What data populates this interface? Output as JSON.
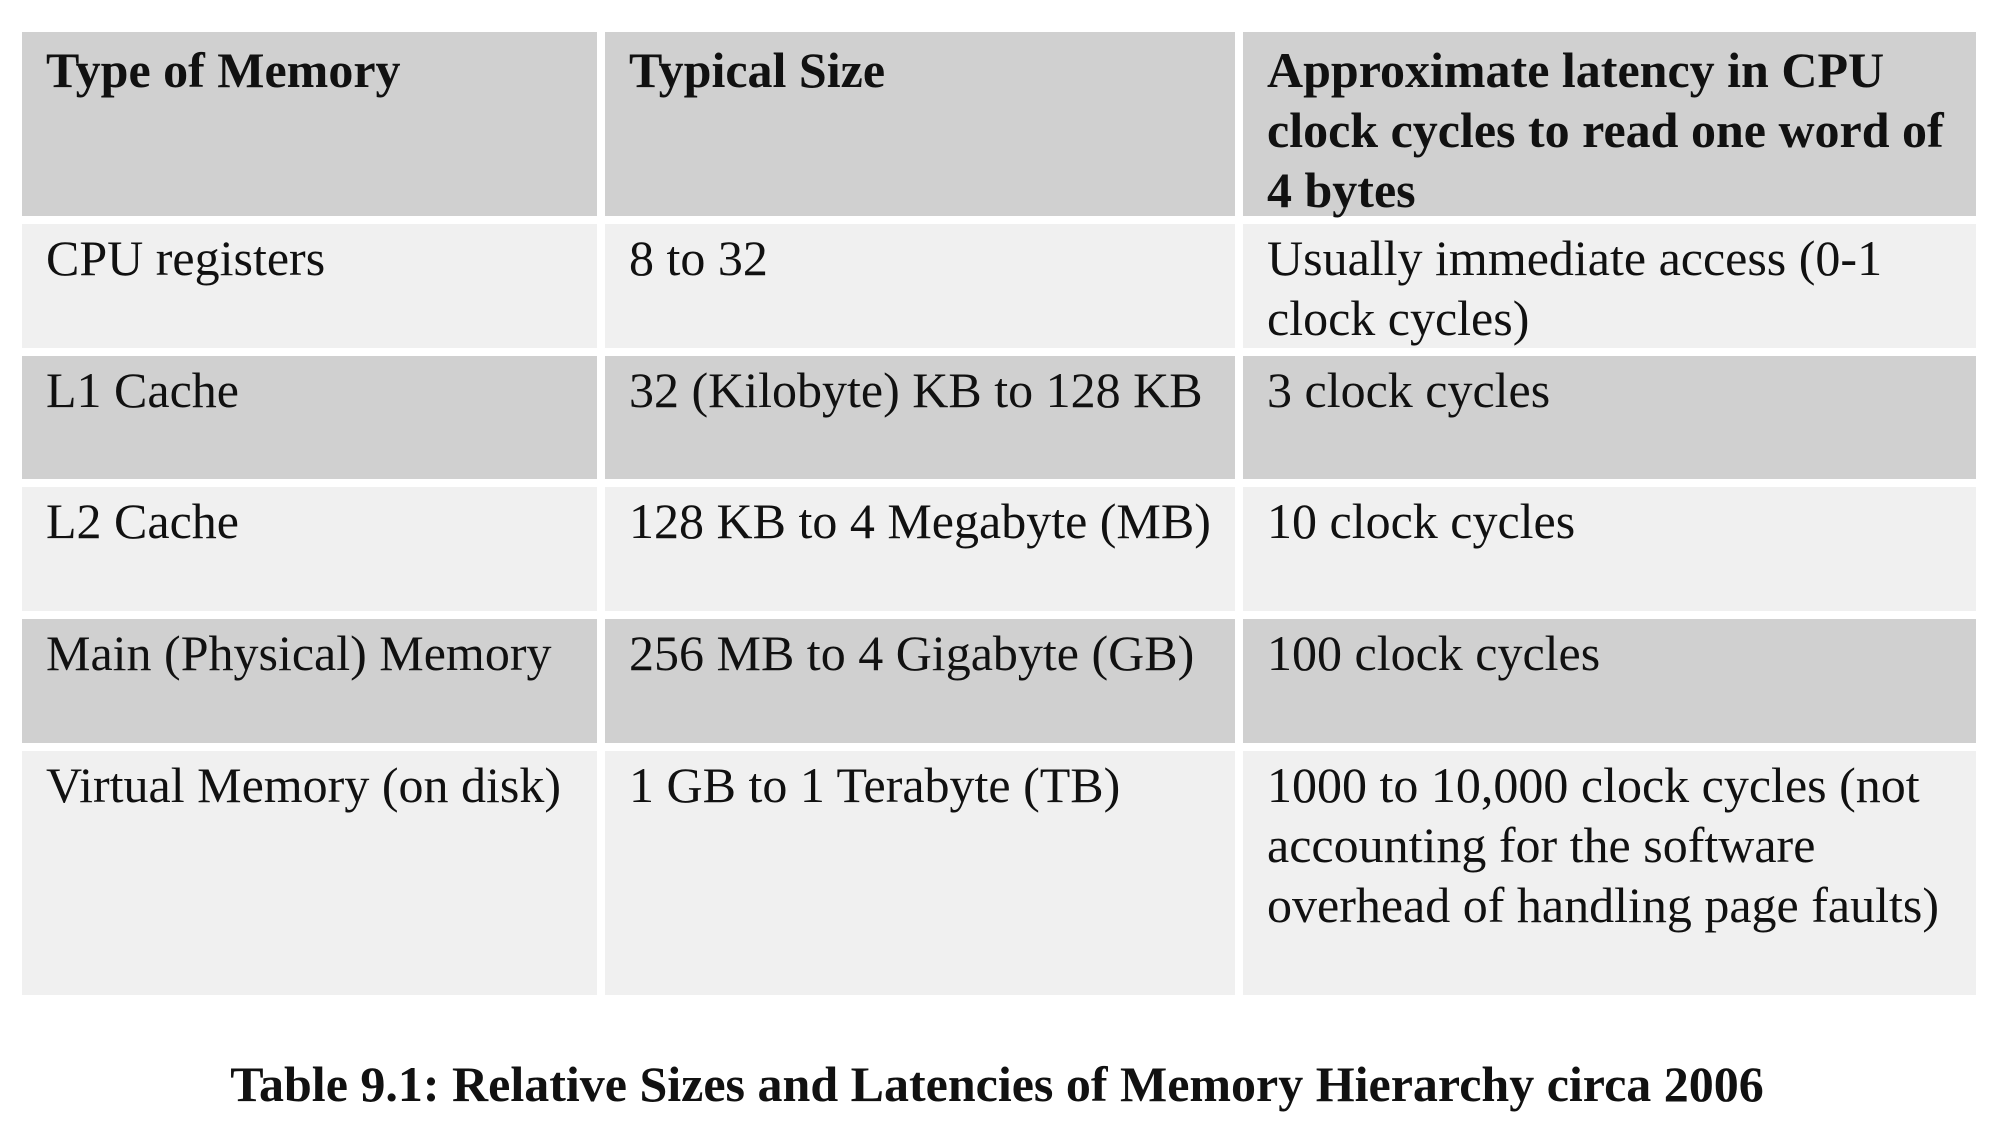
{
  "table": {
    "headers": [
      "Type of Memory",
      "Typical Size",
      "Approximate latency in CPU clock cycles to read one word of 4 bytes"
    ],
    "rows": [
      [
        "CPU registers",
        "8 to 32",
        "Usually immediate access (0-1 clock cycles)"
      ],
      [
        "L1 Cache",
        "32 (Kilobyte) KB to 128 KB",
        "3 clock cycles"
      ],
      [
        "L2 Cache",
        "128 KB to 4 Megabyte (MB)",
        "10 clock cycles"
      ],
      [
        "Main (Physical) Memory",
        "256 MB to 4 Gigabyte (GB)",
        "100 clock cycles"
      ],
      [
        "Virtual Memory (on disk)",
        "1 GB to 1 Terabyte (TB)",
        "1000 to 10,000 clock cycles (not accounting for the software overhead of handling page faults)"
      ]
    ]
  },
  "caption": "Table 9.1: Relative Sizes and Latencies of Memory Hierarchy circa 2006",
  "colors": {
    "header_bg": "#d0d0d0",
    "light_row_bg": "#f0f0f0",
    "dark_row_bg": "#d0d0d0",
    "text": "#111111"
  }
}
